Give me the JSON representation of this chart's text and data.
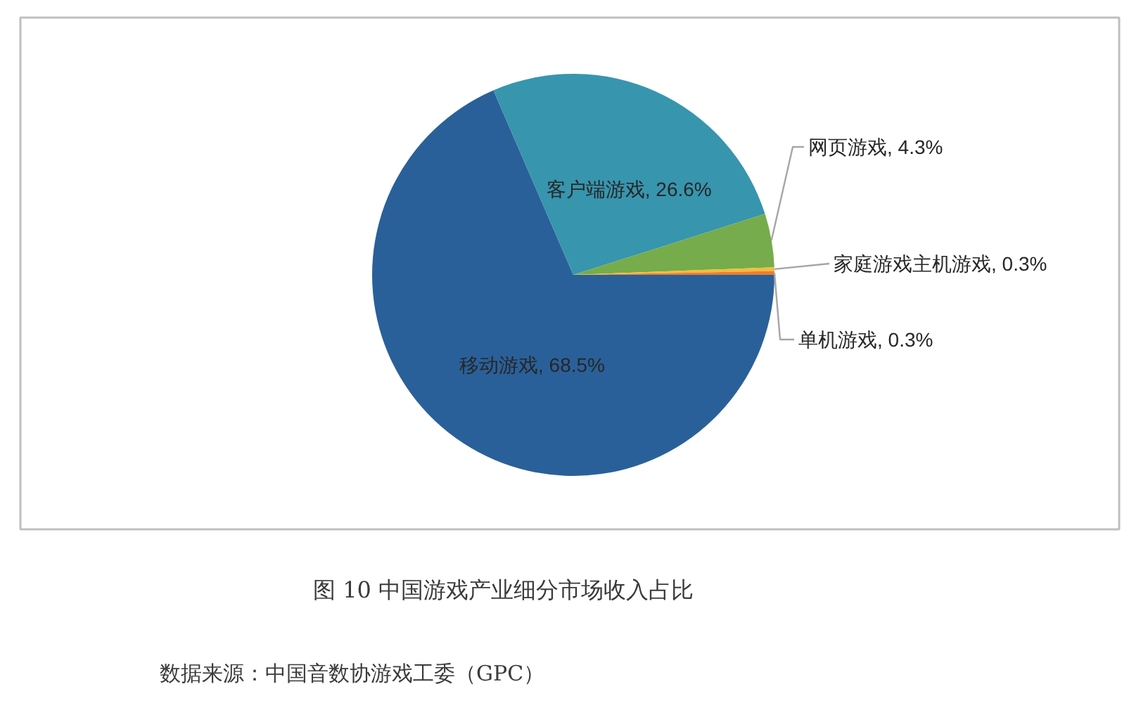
{
  "chart_data": {
    "type": "pie",
    "title": "图 10 中国游戏产业细分市场收入占比",
    "annotations": [
      "数据来源：中国音数协游戏工委（GPC）"
    ],
    "categories": [
      "移动游戏",
      "客户端游戏",
      "网页游戏",
      "家庭游戏主机游戏",
      "单机游戏"
    ],
    "values": [
      68.5,
      26.6,
      4.3,
      0.3,
      0.3
    ],
    "colors": [
      "#2a6099",
      "#3795ae",
      "#76ac4b",
      "#f2bd3c",
      "#ed7d31"
    ],
    "value_labels": [
      "68.5%",
      "26.6%",
      "4.3%",
      "0.3%",
      "0.3%"
    ]
  }
}
